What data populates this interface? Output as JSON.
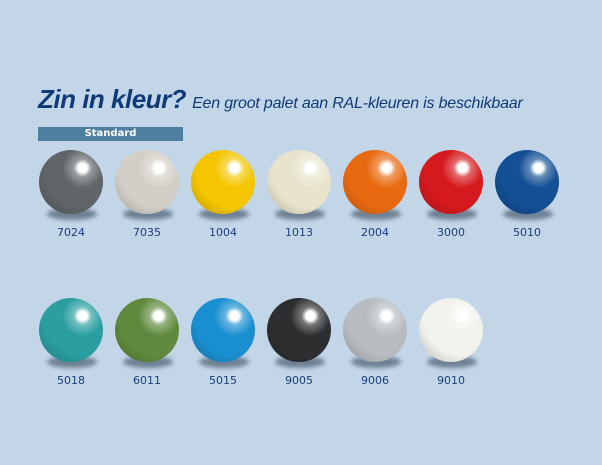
{
  "title": "Zin in kleur?",
  "subtitle": "Een groot palet aan RAL-kleuren is beschikbaar",
  "section_label": "Standard",
  "colors": [
    {
      "code": "7024",
      "hex": "#5f6568"
    },
    {
      "code": "7035",
      "hex": "#d3cfc8"
    },
    {
      "code": "1004",
      "hex": "#f4c500"
    },
    {
      "code": "1013",
      "hex": "#e8e4cc"
    },
    {
      "code": "2004",
      "hex": "#e86a10"
    },
    {
      "code": "3000",
      "hex": "#d41a1e"
    },
    {
      "code": "5010",
      "hex": "#134f94"
    },
    {
      "code": "5018",
      "hex": "#2a9ea0"
    },
    {
      "code": "6011",
      "hex": "#5f8a3e"
    },
    {
      "code": "5015",
      "hex": "#1a8fd0"
    },
    {
      "code": "9005",
      "hex": "#2c2e30"
    },
    {
      "code": "9006",
      "hex": "#b8bcc0"
    },
    {
      "code": "9010",
      "hex": "#f2f2ec"
    }
  ]
}
